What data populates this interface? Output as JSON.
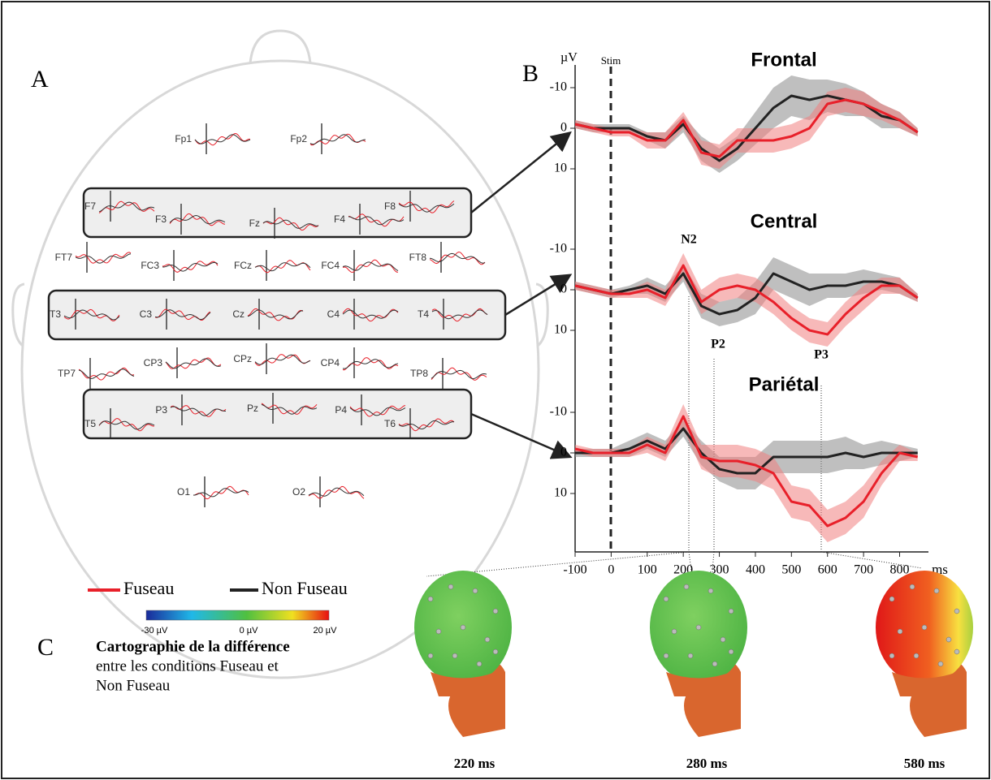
{
  "panel_a": {
    "label": "A",
    "electrodes": [
      "Fp1",
      "Fp2",
      "F7",
      "F3",
      "Fz",
      "F4",
      "F8",
      "FT7",
      "FC3",
      "FCz",
      "FC4",
      "FT8",
      "T3",
      "C3",
      "Cz",
      "C4",
      "T4",
      "TP7",
      "CP3",
      "CPz",
      "CP4",
      "TP8",
      "T5",
      "P3",
      "Pz",
      "P4",
      "T6",
      "O1",
      "O2"
    ]
  },
  "panel_b": {
    "label": "B",
    "y_unit": "µV",
    "x_unit": "ms",
    "stim_label": "Stim",
    "peaks": [
      "N2",
      "P2",
      "P3"
    ]
  },
  "chart_data": [
    {
      "type": "line",
      "title": "Frontal",
      "x": [
        -100,
        -50,
        0,
        50,
        100,
        150,
        200,
        250,
        300,
        350,
        400,
        450,
        500,
        550,
        600,
        650,
        700,
        750,
        800,
        850
      ],
      "xlim": [
        -100,
        880
      ],
      "ylim": [
        -15,
        20
      ],
      "yticks": [
        -10,
        0,
        10
      ],
      "inverted": true,
      "series": [
        {
          "name": "Non Fuseau",
          "color": "#222222",
          "band_color": "#8a8a8a",
          "values": [
            -1,
            0,
            0,
            0,
            2,
            3,
            -1,
            5,
            8,
            5,
            0,
            -5,
            -8,
            -7,
            -8,
            -7,
            -6,
            -3,
            -2,
            1
          ],
          "errors": [
            1,
            1,
            1,
            1,
            1,
            2,
            2,
            3,
            3,
            3,
            4,
            5,
            5,
            5,
            4,
            4,
            3,
            3,
            2,
            1
          ]
        },
        {
          "name": "Fuseau",
          "color": "#e8202a",
          "band_color": "#f08080",
          "values": [
            -1,
            0,
            1,
            1,
            3,
            3,
            -2,
            6,
            7,
            3,
            3,
            3,
            2,
            0,
            -6,
            -7,
            -6,
            -4,
            -2,
            1
          ],
          "errors": [
            1,
            1,
            1,
            1,
            2,
            2,
            2,
            3,
            3,
            3,
            3,
            3,
            3,
            3,
            3,
            3,
            3,
            2,
            2,
            1
          ]
        }
      ]
    },
    {
      "type": "line",
      "title": "Central",
      "x": [
        -100,
        -50,
        0,
        50,
        100,
        150,
        200,
        250,
        300,
        350,
        400,
        450,
        500,
        550,
        600,
        650,
        700,
        750,
        800,
        850
      ],
      "xlim": [
        -100,
        880
      ],
      "ylim": [
        -15,
        20
      ],
      "yticks": [
        -10,
        0,
        10
      ],
      "inverted": true,
      "series": [
        {
          "name": "Non Fuseau",
          "color": "#222222",
          "band_color": "#8a8a8a",
          "values": [
            -1,
            0,
            1,
            0,
            -1,
            1,
            -4,
            4,
            6,
            5,
            2,
            -4,
            -2,
            0,
            -1,
            -1,
            -2,
            -2,
            -1,
            2
          ],
          "errors": [
            1,
            1,
            1,
            1,
            2,
            2,
            2,
            3,
            3,
            3,
            4,
            4,
            4,
            4,
            3,
            3,
            3,
            2,
            2,
            1
          ]
        },
        {
          "name": "Fuseau",
          "color": "#e8202a",
          "band_color": "#f08080",
          "values": [
            -1,
            0,
            1,
            1,
            0,
            2,
            -6,
            3,
            0,
            -1,
            0,
            3,
            7,
            10,
            11,
            6,
            2,
            -1,
            -1,
            2
          ],
          "errors": [
            1,
            1,
            1,
            1,
            2,
            2,
            3,
            3,
            3,
            3,
            3,
            3,
            3,
            3,
            3,
            3,
            3,
            2,
            2,
            1
          ]
        }
      ]
    },
    {
      "type": "line",
      "title": "Pariétal",
      "x": [
        -100,
        -50,
        0,
        50,
        100,
        150,
        200,
        250,
        300,
        350,
        400,
        450,
        500,
        550,
        600,
        650,
        700,
        750,
        800,
        850
      ],
      "xlim": [
        -100,
        880
      ],
      "ylim": [
        -15,
        24
      ],
      "yticks": [
        -10,
        0,
        10
      ],
      "xticks": [
        -100,
        0,
        100,
        200,
        300,
        400,
        500,
        600,
        700,
        800
      ],
      "inverted": true,
      "series": [
        {
          "name": "Non Fuseau",
          "color": "#222222",
          "band_color": "#8a8a8a",
          "values": [
            0,
            0,
            0,
            -1,
            -3,
            -1,
            -6,
            0,
            4,
            5,
            5,
            1,
            1,
            1,
            1,
            0,
            1,
            0,
            0,
            0
          ],
          "errors": [
            1,
            1,
            1,
            2,
            2,
            2,
            2,
            3,
            3,
            4,
            4,
            4,
            4,
            4,
            4,
            4,
            3,
            3,
            2,
            1
          ]
        },
        {
          "name": "Fuseau",
          "color": "#e8202a",
          "band_color": "#f08080",
          "values": [
            -1,
            0,
            0,
            0,
            -2,
            0,
            -9,
            1,
            2,
            2,
            3,
            5,
            12,
            13,
            18,
            16,
            12,
            5,
            0,
            1
          ],
          "errors": [
            1,
            1,
            1,
            1,
            2,
            2,
            3,
            3,
            4,
            4,
            4,
            4,
            4,
            4,
            4,
            4,
            4,
            3,
            2,
            1
          ]
        }
      ]
    }
  ],
  "panel_c": {
    "label": "C",
    "title": "Cartographie de la différence",
    "text_lines": [
      "entre les conditions Fuseau et",
      "Non Fuseau"
    ],
    "colorbar_labels": [
      "-30 µV",
      "0 µV",
      "20 µV"
    ],
    "map_labels": [
      "220 ms",
      "280 ms",
      "580 ms"
    ]
  }
}
